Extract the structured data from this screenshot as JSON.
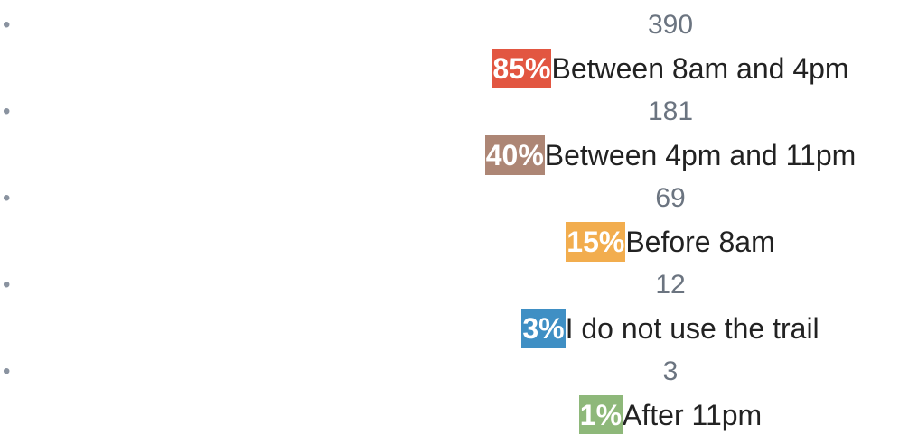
{
  "items": [
    {
      "count": 390,
      "percent": "85%",
      "label": "Between 8am and 4pm",
      "color": "#e25641"
    },
    {
      "count": 181,
      "percent": "40%",
      "label": "Between 4pm and 11pm",
      "color": "#ad8675"
    },
    {
      "count": 69,
      "percent": "15%",
      "label": "Before 8am",
      "color": "#f2ad4e"
    },
    {
      "count": 12,
      "percent": "3%",
      "label": "I do not use the trail",
      "color": "#3f8fc4"
    },
    {
      "count": 3,
      "percent": "1%",
      "label": "After 11pm",
      "color": "#8eb87a"
    }
  ]
}
